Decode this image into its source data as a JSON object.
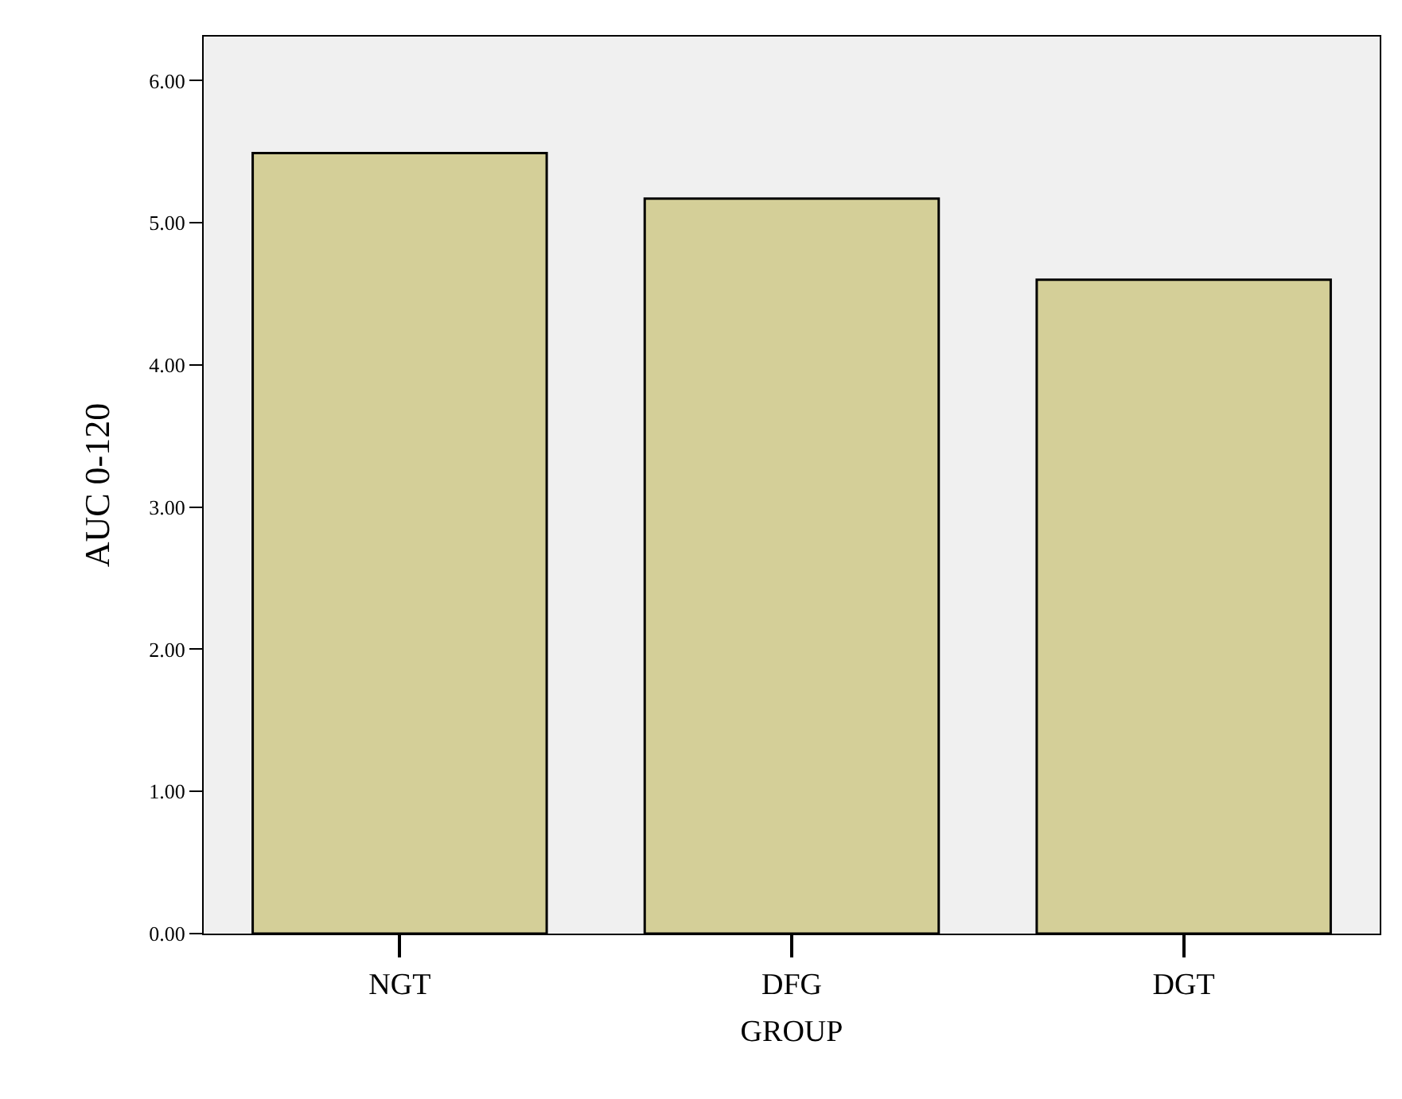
{
  "chart_data": {
    "type": "bar",
    "xlabel": "GROUP",
    "ylabel": "AUC 0-120",
    "categories": [
      "NGT",
      "DFG",
      "DGT"
    ],
    "values": [
      5.49,
      5.17,
      4.6
    ],
    "color": "#d4cf98",
    "ylim": [
      0,
      6.31
    ],
    "yticks": [
      {
        "value": 0,
        "label": "0.00"
      },
      {
        "value": 1,
        "label": "1.00"
      },
      {
        "value": 2,
        "label": "2.00"
      },
      {
        "value": 3,
        "label": "3.00"
      },
      {
        "value": 4,
        "label": "4.00"
      },
      {
        "value": 5,
        "label": "5.00"
      },
      {
        "value": 6,
        "label": "6.00"
      }
    ],
    "grid": false
  }
}
